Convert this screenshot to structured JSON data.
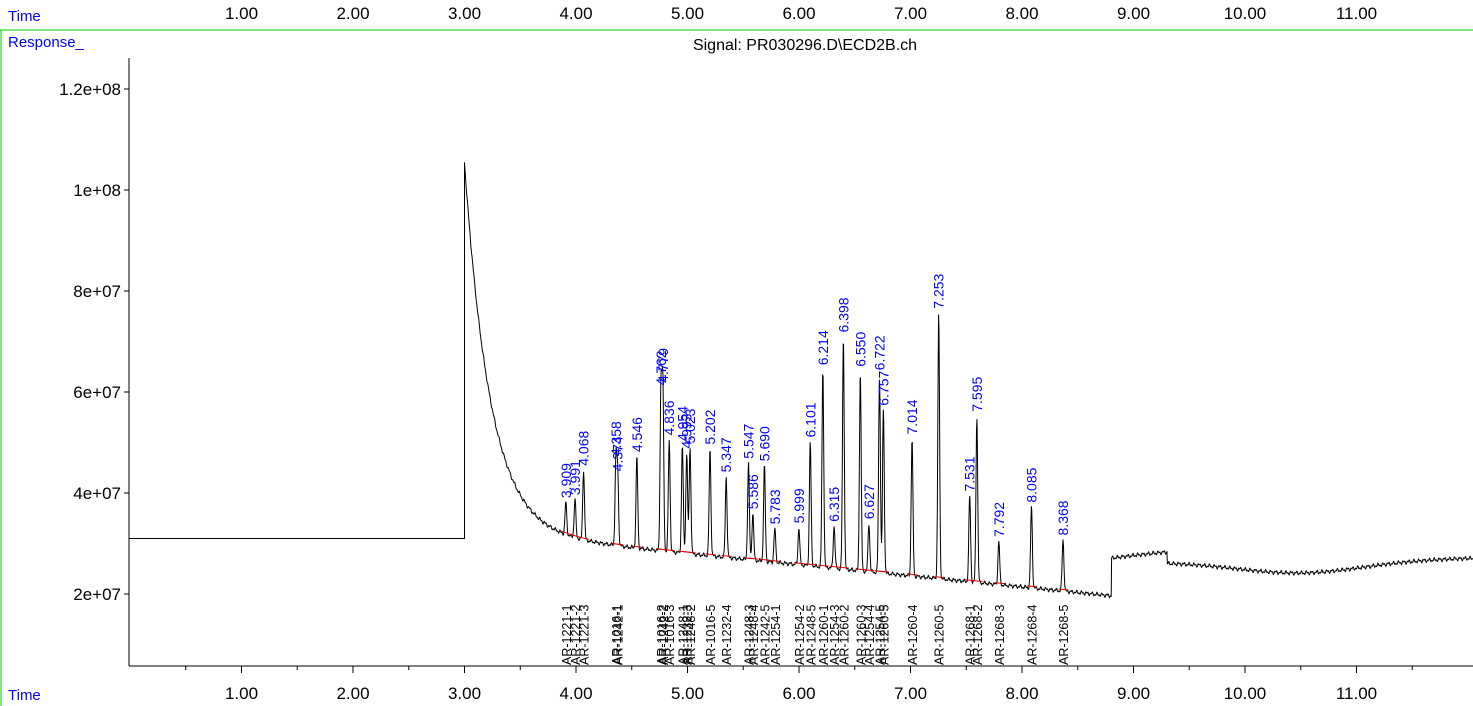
{
  "header": {
    "time_label": "Time",
    "response_label": "Response_",
    "signal_title": "Signal: PR030296.D\\ECD2B.ch"
  },
  "footer": {
    "time_label": "Time"
  },
  "colors": {
    "label_blue": "#0000ff",
    "frame_green": "#00cc00",
    "baseline_red": "#dd0000",
    "trace_black": "#000000"
  },
  "chart_data": {
    "type": "line",
    "title": "Signal: PR030296.D\\ECD2B.ch",
    "xlabel": "Time",
    "ylabel": "Response_",
    "xlim": [
      0.0,
      11.9
    ],
    "ylim": [
      5000000,
      128000000
    ],
    "x_ticks": [
      1.0,
      2.0,
      3.0,
      4.0,
      5.0,
      6.0,
      7.0,
      8.0,
      9.0,
      10.0,
      11.0
    ],
    "x_tick_labels": [
      "1.00",
      "2.00",
      "3.00",
      "4.00",
      "5.00",
      "6.00",
      "7.00",
      "8.00",
      "9.00",
      "10.00",
      "11.00"
    ],
    "y_ticks": [
      20000000,
      40000000,
      60000000,
      80000000,
      100000000,
      120000000
    ],
    "y_tick_labels": [
      "2e+07",
      "4e+07",
      "6e+07",
      "8e+07",
      "1e+08",
      "1.2e+08"
    ],
    "pre_injection_level": 31000000,
    "solvent_front": {
      "time": 3.0,
      "max": 105500000
    },
    "peaks": [
      {
        "time": 3.909,
        "label": "3.909",
        "height": 38200000
      },
      {
        "time": 3.991,
        "label": "3.991",
        "height": 38800000
      },
      {
        "time": 4.068,
        "label": "4.068",
        "height": 44600000
      },
      {
        "time": 4.374,
        "label": "4.374",
        "height": 43500000
      },
      {
        "time": 4.358,
        "label": "4.358",
        "height": 46500000
      },
      {
        "time": 4.546,
        "label": "4.546",
        "height": 47300000
      },
      {
        "time": 4.762,
        "label": "4.762",
        "height": 60500000
      },
      {
        "time": 4.779,
        "label": "4.779",
        "height": 61000000
      },
      {
        "time": 4.836,
        "label": "4.836",
        "height": 50600000
      },
      {
        "time": 4.954,
        "label": "4.954",
        "height": 49500000
      },
      {
        "time": 4.993,
        "label": "4.993",
        "height": 48000000
      },
      {
        "time": 5.023,
        "label": "5.023",
        "height": 49000000
      },
      {
        "time": 5.202,
        "label": "5.202",
        "height": 48800000
      },
      {
        "time": 5.347,
        "label": "5.347",
        "height": 43300000
      },
      {
        "time": 5.547,
        "label": "5.547",
        "height": 46000000
      },
      {
        "time": 5.586,
        "label": "5.586",
        "height": 36000000
      },
      {
        "time": 5.69,
        "label": "5.690",
        "height": 45500000
      },
      {
        "time": 5.783,
        "label": "5.783",
        "height": 33000000
      },
      {
        "time": 5.999,
        "label": "5.999",
        "height": 33200000
      },
      {
        "time": 6.101,
        "label": "6.101",
        "height": 50200000
      },
      {
        "time": 6.214,
        "label": "6.214",
        "height": 64500000
      },
      {
        "time": 6.315,
        "label": "6.315",
        "height": 33500000
      },
      {
        "time": 6.398,
        "label": "6.398",
        "height": 71000000
      },
      {
        "time": 6.55,
        "label": "6.550",
        "height": 64200000
      },
      {
        "time": 6.627,
        "label": "6.627",
        "height": 34000000
      },
      {
        "time": 6.722,
        "label": "6.722",
        "height": 63500000
      },
      {
        "time": 6.757,
        "label": "6.757",
        "height": 56500000
      },
      {
        "time": 7.014,
        "label": "7.014",
        "height": 50800000
      },
      {
        "time": 7.253,
        "label": "7.253",
        "height": 75700000
      },
      {
        "time": 7.531,
        "label": "7.531",
        "height": 39500000
      },
      {
        "time": 7.595,
        "label": "7.595",
        "height": 55300000
      },
      {
        "time": 7.792,
        "label": "7.792",
        "height": 30500000
      },
      {
        "time": 8.085,
        "label": "8.085",
        "height": 37300000
      },
      {
        "time": 8.368,
        "label": "8.368",
        "height": 30800000
      }
    ],
    "compound_labels": [
      {
        "time": 3.909,
        "label": "AR-1221-1"
      },
      {
        "time": 3.991,
        "label": "AR-1221-2"
      },
      {
        "time": 4.068,
        "label": "AR-1221-3"
      },
      {
        "time": 4.358,
        "label": "AR-1016-1"
      },
      {
        "time": 4.374,
        "label": "AR-1242-1"
      },
      {
        "time": 4.762,
        "label": "AR-1016-2"
      },
      {
        "time": 4.779,
        "label": "AR-1242-2"
      },
      {
        "time": 4.836,
        "label": "AR-1016-3"
      },
      {
        "time": 4.954,
        "label": "AR-1248-1"
      },
      {
        "time": 4.993,
        "label": "AR-1232-3"
      },
      {
        "time": 5.023,
        "label": "AR-1248-2"
      },
      {
        "time": 5.202,
        "label": "AR-1016-5"
      },
      {
        "time": 5.347,
        "label": "AR-1232-4"
      },
      {
        "time": 5.547,
        "label": "AR-1248-3"
      },
      {
        "time": 5.586,
        "label": "AR-1248-4"
      },
      {
        "time": 5.69,
        "label": "AR-1242-5"
      },
      {
        "time": 5.783,
        "label": "AR-1254-1"
      },
      {
        "time": 5.999,
        "label": "AR-1254-2"
      },
      {
        "time": 6.101,
        "label": "AR-1248-5"
      },
      {
        "time": 6.214,
        "label": "AR-1260-1"
      },
      {
        "time": 6.315,
        "label": "AR-1254-3"
      },
      {
        "time": 6.398,
        "label": "AR-1260-2"
      },
      {
        "time": 6.55,
        "label": "AR-1260-3"
      },
      {
        "time": 6.627,
        "label": "AR-1254-4"
      },
      {
        "time": 6.722,
        "label": "AR-1254-5"
      },
      {
        "time": 6.757,
        "label": "AR-1260-5"
      },
      {
        "time": 7.014,
        "label": "AR-1260-4"
      },
      {
        "time": 7.253,
        "label": "AR-1260-5"
      },
      {
        "time": 7.531,
        "label": "AR-1268-1"
      },
      {
        "time": 7.595,
        "label": "AR-1268-2"
      },
      {
        "time": 7.792,
        "label": "AR-1268-3"
      },
      {
        "time": 8.085,
        "label": "AR-1268-4"
      },
      {
        "time": 8.368,
        "label": "AR-1268-5"
      }
    ],
    "grid": false,
    "legend": "none"
  }
}
